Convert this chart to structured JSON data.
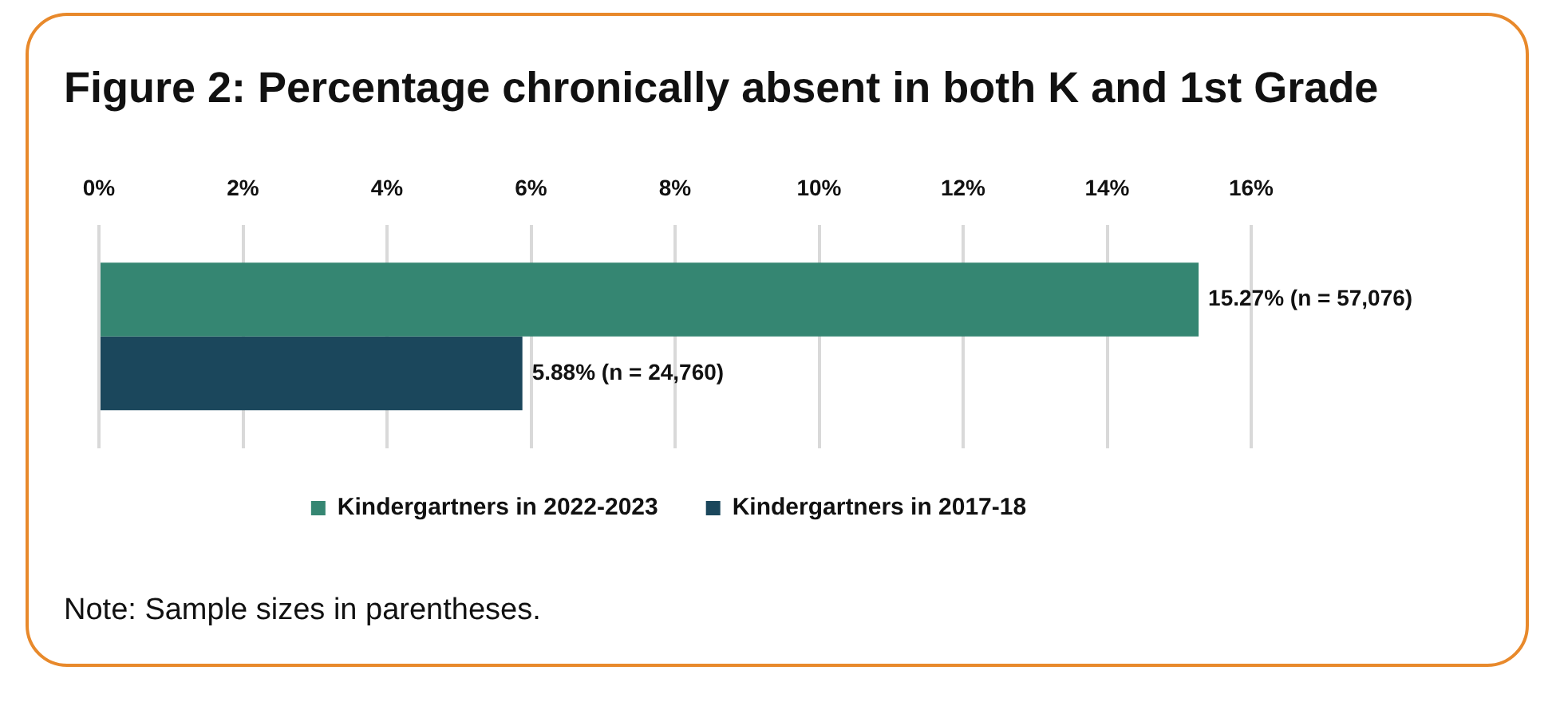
{
  "chart_data": {
    "type": "bar",
    "orientation": "horizontal",
    "title": "Figure 2: Percentage chronically absent in both K and 1st Grade",
    "categories": [
      null
    ],
    "series": [
      {
        "name": "Kindergartners in 2022-2023",
        "color": "#358672",
        "values": [
          15.27
        ],
        "value_labels": [
          "15.27% (n = 57,076)"
        ]
      },
      {
        "name": "Kindergartners in 2017-18",
        "color": "#1b475c",
        "values": [
          5.88
        ],
        "value_labels": [
          "5.88% (n = 24,760)"
        ]
      }
    ],
    "xlim": [
      0,
      16
    ],
    "xticks": [
      {
        "value": 0,
        "label": "0%"
      },
      {
        "value": 2,
        "label": "2%"
      },
      {
        "value": 4,
        "label": "4%"
      },
      {
        "value": 6,
        "label": "6%"
      },
      {
        "value": 8,
        "label": "8%"
      },
      {
        "value": 10,
        "label": "10%"
      },
      {
        "value": 12,
        "label": "12%"
      },
      {
        "value": 14,
        "label": "14%"
      },
      {
        "value": 16,
        "label": "16%"
      }
    ],
    "grid": "x",
    "legend": "bottom",
    "annotations": [
      "Note: Sample sizes in parentheses."
    ]
  }
}
